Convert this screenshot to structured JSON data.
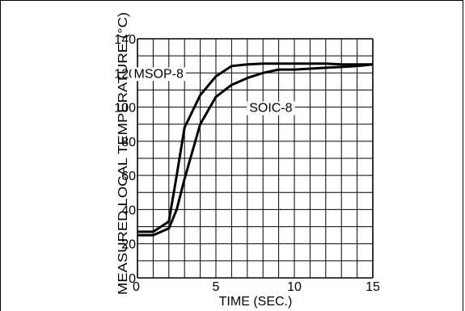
{
  "chart_data": {
    "type": "line",
    "xlabel": "TIME (SEC.)",
    "ylabel": "MEASURED LOCAL TEMPERATURE (°C)",
    "xlim": [
      0,
      15
    ],
    "ylim": [
      0,
      140
    ],
    "x_ticks": [
      0,
      5,
      10,
      15
    ],
    "y_ticks": [
      0,
      20,
      40,
      60,
      80,
      100,
      120,
      140
    ],
    "x_minor_step": 1,
    "y_minor_step": 10,
    "grid": true,
    "series": [
      {
        "name": "MSOP-8",
        "x": [
          0,
          1,
          2,
          2.5,
          3,
          4,
          5,
          6,
          7,
          8,
          9,
          10,
          11,
          12,
          13,
          14,
          15
        ],
        "y": [
          27,
          27,
          33,
          60,
          88,
          107,
          118,
          124,
          125,
          125.5,
          125.5,
          125.5,
          125.5,
          125.5,
          125,
          125,
          125
        ]
      },
      {
        "name": "SOIC-8",
        "x": [
          0,
          1,
          2,
          2.5,
          3,
          4,
          5,
          6,
          7,
          8,
          9,
          10,
          11,
          12,
          13,
          14,
          15
        ],
        "y": [
          25,
          25,
          29,
          40,
          58,
          90,
          106,
          113,
          117,
          120,
          122,
          122,
          122.5,
          123,
          123.5,
          124,
          125
        ]
      }
    ]
  }
}
